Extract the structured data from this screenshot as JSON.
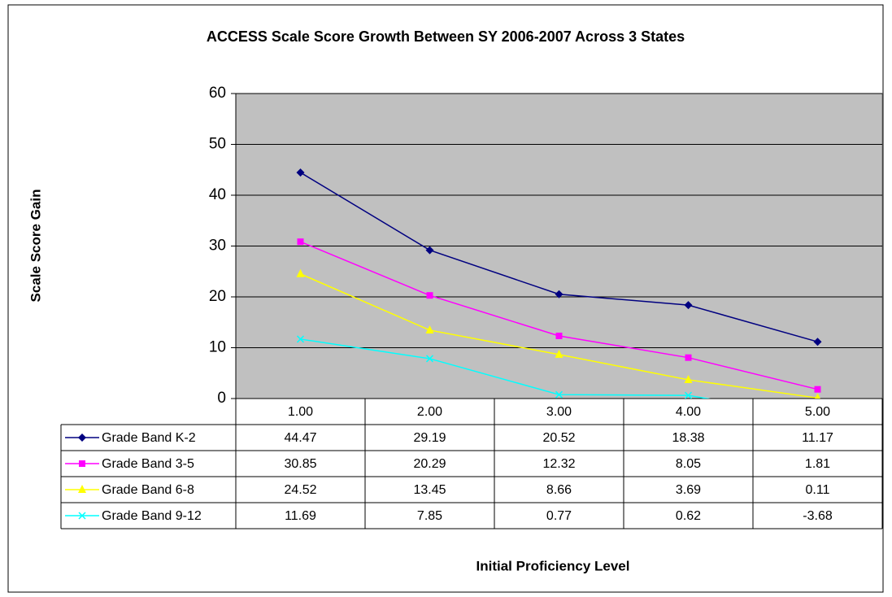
{
  "chart_data": {
    "type": "line",
    "title": "ACCESS Scale Score Growth Between SY 2006-2007 Across 3 States",
    "x_label": "Initial Proficiency Level",
    "y_label": "Scale Score Gain",
    "categories": [
      "1.00",
      "2.00",
      "3.00",
      "4.00",
      "5.00"
    ],
    "ylim": [
      0,
      60
    ],
    "yticks": [
      0,
      10,
      20,
      30,
      40,
      50,
      60
    ],
    "grid": true,
    "plot_background": "#c0c0c0",
    "series": [
      {
        "name": "Grade Band K-2",
        "color": "#000080",
        "marker": "diamond",
        "values": [
          44.47,
          29.19,
          20.52,
          18.38,
          11.17
        ]
      },
      {
        "name": "Grade Band 3-5",
        "color": "#ff00ff",
        "marker": "square",
        "values": [
          30.85,
          20.29,
          12.32,
          8.05,
          1.81
        ]
      },
      {
        "name": "Grade Band 6-8",
        "color": "#ffff00",
        "marker": "triangle",
        "values": [
          24.52,
          13.45,
          8.66,
          3.69,
          0.11
        ]
      },
      {
        "name": "Grade Band 9-12",
        "color": "#00ffff",
        "marker": "x",
        "values": [
          11.69,
          7.85,
          0.77,
          0.62,
          -3.68
        ]
      }
    ]
  }
}
